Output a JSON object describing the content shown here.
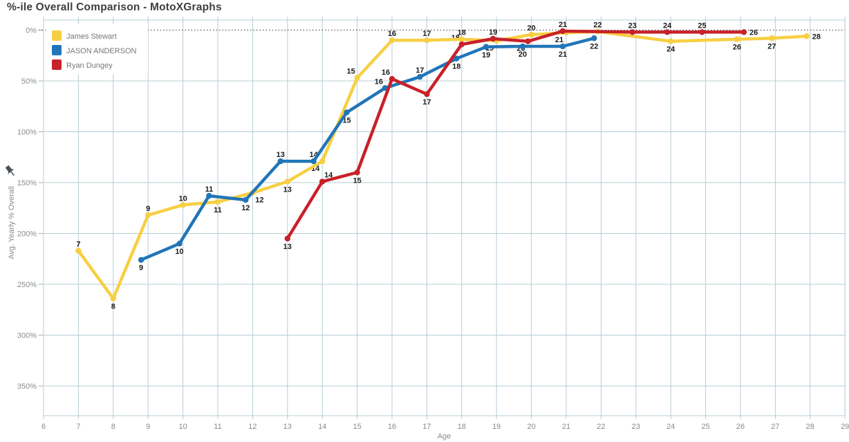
{
  "ui": {
    "title": "%-ile Overall Comparison - MotoXGraphs"
  },
  "legend": {
    "items": [
      {
        "label": "James Stewart",
        "color": "#F7CF43"
      },
      {
        "label": "JASON ANDERSON",
        "color": "#2175B8"
      },
      {
        "label": "Ryan Dungey",
        "color": "#C82129"
      }
    ]
  },
  "axes": {
    "x_title": "Age",
    "y_title": "Avg. Yearly % Overall"
  },
  "style": {
    "grid_color": "#b7ccd5",
    "zero_line_color": "#333333",
    "tick_text_color": "#8a8a8a",
    "data_label_color": "#1b1b1b",
    "pin_icon_color": "#49525a"
  },
  "chart_data": {
    "type": "line",
    "title": "%-ile Overall Comparison - MotoXGraphs",
    "xlabel": "Age",
    "ylabel": "Avg. Yearly % Overall",
    "xlim": [
      6,
      29
    ],
    "ylim": [
      0,
      350
    ],
    "y_inverted": true,
    "grid": true,
    "legend_position": "top-left",
    "x_ticks": [
      6,
      7,
      8,
      9,
      10,
      11,
      12,
      13,
      14,
      15,
      16,
      17,
      18,
      19,
      20,
      21,
      22,
      23,
      24,
      25,
      26,
      27,
      28,
      29
    ],
    "y_ticks": [
      "0%",
      "50%",
      "100%",
      "150%",
      "200%",
      "250%",
      "300%",
      "350%"
    ],
    "zero_line_style": "dotted",
    "series": [
      {
        "name": "James Stewart",
        "color": "#F7CF43",
        "points": [
          {
            "age": 7,
            "value": 217,
            "label": "7",
            "label_pos": "above"
          },
          {
            "age": 8,
            "value": 264,
            "label": "8",
            "label_pos": "below"
          },
          {
            "age": 9,
            "value": 182,
            "label": "9",
            "label_pos": "above"
          },
          {
            "age": 10,
            "value": 172,
            "label": "10",
            "label_pos": "above"
          },
          {
            "age": 11,
            "value": 169,
            "label": "11",
            "label_pos": "below"
          },
          {
            "age": 12,
            "value": 160,
            "label": "12",
            "label_pos": "belowright"
          },
          {
            "age": 13,
            "value": 149,
            "label": "13",
            "label_pos": "below"
          },
          {
            "age": 14,
            "value": 129,
            "label": "14",
            "label_pos": "belowleft"
          },
          {
            "age": 15,
            "value": 47,
            "label": "15",
            "label_pos": "aboveleft"
          },
          {
            "age": 16,
            "value": 10,
            "label": "16",
            "label_pos": "above"
          },
          {
            "age": 17,
            "value": 10,
            "label": "17",
            "label_pos": "above"
          },
          {
            "age": 18,
            "value": 9,
            "label": "18",
            "label_pos": "above"
          },
          {
            "age": 19,
            "value": 10.5,
            "label": "19",
            "label_pos": "belowleft"
          },
          {
            "age": 20,
            "value": 4.5,
            "label": "20",
            "label_pos": "above"
          },
          {
            "age": 21,
            "value": 2.5,
            "label": "21",
            "label_pos": "belowleft"
          },
          {
            "age": 21.9,
            "value": 1.5,
            "label": "22",
            "label_pos": "above"
          },
          {
            "age": 24,
            "value": 11,
            "label": "24",
            "label_pos": "below"
          },
          {
            "age": 25.9,
            "value": 9,
            "label": "26",
            "label_pos": "below"
          },
          {
            "age": 26.9,
            "value": 8,
            "label": "27",
            "label_pos": "below"
          },
          {
            "age": 27.9,
            "value": 6,
            "label": "28",
            "label_pos": "right"
          }
        ]
      },
      {
        "name": "JASON ANDERSON",
        "color": "#2175B8",
        "points": [
          {
            "age": 8.8,
            "value": 226,
            "label": "9",
            "label_pos": "below"
          },
          {
            "age": 9.9,
            "value": 210,
            "label": "10",
            "label_pos": "below"
          },
          {
            "age": 10.75,
            "value": 163,
            "label": "11",
            "label_pos": "above"
          },
          {
            "age": 11.8,
            "value": 167,
            "label": "12",
            "label_pos": "below"
          },
          {
            "age": 12.8,
            "value": 129,
            "label": "13",
            "label_pos": "above"
          },
          {
            "age": 13.75,
            "value": 129,
            "label": "14",
            "label_pos": "above"
          },
          {
            "age": 14.7,
            "value": 81,
            "label": "15",
            "label_pos": "below"
          },
          {
            "age": 15.8,
            "value": 57,
            "label": "16",
            "label_pos": "aboveleft"
          },
          {
            "age": 16.8,
            "value": 46,
            "label": "17",
            "label_pos": "above"
          },
          {
            "age": 17.85,
            "value": 28,
            "label": "18",
            "label_pos": "below"
          },
          {
            "age": 18.7,
            "value": 16.5,
            "label": "19",
            "label_pos": "below"
          },
          {
            "age": 19.75,
            "value": 16,
            "label": "20",
            "label_pos": "below"
          },
          {
            "age": 20.9,
            "value": 16,
            "label": "21",
            "label_pos": "below"
          },
          {
            "age": 21.8,
            "value": 8,
            "label": "22",
            "label_pos": "below"
          }
        ]
      },
      {
        "name": "Ryan Dungey",
        "color": "#C82129",
        "points": [
          {
            "age": 13,
            "value": 205,
            "label": "13",
            "label_pos": "below"
          },
          {
            "age": 14,
            "value": 149,
            "label": "14",
            "label_pos": "aboveright"
          },
          {
            "age": 15,
            "value": 140,
            "label": "15",
            "label_pos": "below"
          },
          {
            "age": 16,
            "value": 48,
            "label": "16",
            "label_pos": "aboveleft"
          },
          {
            "age": 17,
            "value": 63,
            "label": "17",
            "label_pos": "below"
          },
          {
            "age": 18,
            "value": 14,
            "label": "18",
            "label_pos": "aboveleft"
          },
          {
            "age": 18.9,
            "value": 8.5,
            "label": "19",
            "label_pos": "above"
          },
          {
            "age": 19.9,
            "value": 11,
            "label": "20",
            "label_pos": "belowleft"
          },
          {
            "age": 20.9,
            "value": 1,
            "label": "21",
            "label_pos": "above"
          },
          {
            "age": 22.9,
            "value": 2,
            "label": "23",
            "label_pos": "above"
          },
          {
            "age": 23.9,
            "value": 2,
            "label": "24",
            "label_pos": "above"
          },
          {
            "age": 24.9,
            "value": 2,
            "label": "25",
            "label_pos": "above"
          },
          {
            "age": 26.1,
            "value": 2,
            "label": "26",
            "label_pos": "right"
          }
        ]
      }
    ]
  }
}
